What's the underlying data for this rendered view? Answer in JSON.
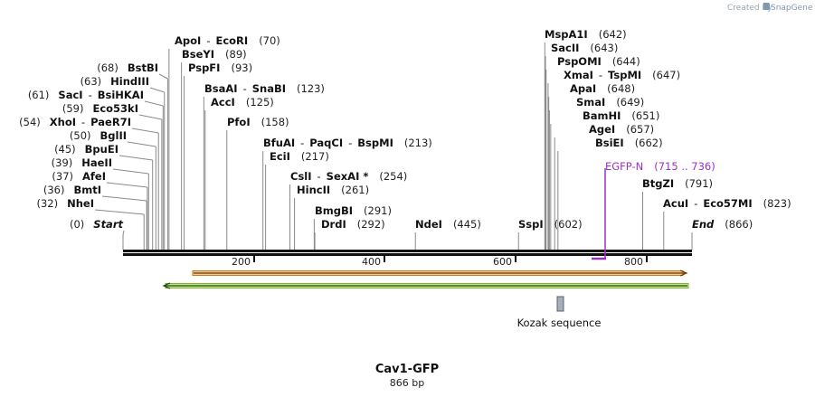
{
  "credit": {
    "created_by": "Created by",
    "brand": "SnapGene"
  },
  "sequence": {
    "length_bp": 866
  },
  "title": "Cav1-GFP",
  "subtitle": "866 bp",
  "features": [
    {
      "id": "EGFP-N",
      "label": "EGFP-N",
      "range_text": "(715 .. 736)",
      "start": 715,
      "end": 736
    },
    {
      "id": "kozak",
      "label": "Kozak sequence"
    }
  ],
  "ruler_ticks": [
    "200",
    "400",
    "600",
    "800"
  ],
  "sites": [
    {
      "name": "Start",
      "pos_text": "(0)",
      "pos": 0,
      "side": "left",
      "italic": true
    },
    {
      "name": "NheI",
      "pos_text": "(32)",
      "pos": 32,
      "side": "left"
    },
    {
      "name": "BmtI",
      "pos_text": "(36)",
      "pos": 36,
      "side": "left"
    },
    {
      "name": "AfeI",
      "pos_text": "(37)",
      "pos": 37,
      "side": "left"
    },
    {
      "name": "HaeII",
      "pos_text": "(39)",
      "pos": 39,
      "side": "left"
    },
    {
      "name": "BpuEI",
      "pos_text": "(45)",
      "pos": 45,
      "side": "left"
    },
    {
      "name": "BglII",
      "pos_text": "(50)",
      "pos": 50,
      "side": "left"
    },
    {
      "name": "XhoI",
      "name2": "PaeR7I",
      "pos_text": "(54)",
      "pos": 54,
      "side": "left"
    },
    {
      "name": "Eco53kI",
      "pos_text": "(59)",
      "pos": 59,
      "side": "left"
    },
    {
      "name": "SacI",
      "name2": "BsiHKAI",
      "pos_text": "(61)",
      "pos": 61,
      "side": "left"
    },
    {
      "name": "HindIII",
      "pos_text": "(63)",
      "pos": 63,
      "side": "left"
    },
    {
      "name": "BstBI",
      "pos_text": "(68)",
      "pos": 68,
      "side": "left"
    },
    {
      "name": "ApoI",
      "name2": "EcoRI",
      "pos_text": "(70)",
      "pos": 70,
      "side": "right"
    },
    {
      "name": "BseYI",
      "pos_text": "(89)",
      "pos": 89,
      "side": "right"
    },
    {
      "name": "PspFI",
      "pos_text": "(93)",
      "pos": 93,
      "side": "right"
    },
    {
      "name": "BsaAI",
      "name2": "SnaBI",
      "pos_text": "(123)",
      "pos": 123,
      "side": "right"
    },
    {
      "name": "AccI",
      "pos_text": "(125)",
      "pos": 125,
      "side": "right"
    },
    {
      "name": "PfoI",
      "pos_text": "(158)",
      "pos": 158,
      "side": "right"
    },
    {
      "name": "BfuAI",
      "name2": "PaqCI",
      "name3": "BspMI",
      "pos_text": "(213)",
      "pos": 213,
      "side": "right"
    },
    {
      "name": "EciI",
      "pos_text": "(217)",
      "pos": 217,
      "side": "right"
    },
    {
      "name": "CslI",
      "name2": "SexAI *",
      "pos_text": "(254)",
      "pos": 254,
      "side": "right"
    },
    {
      "name": "HincII",
      "pos_text": "(261)",
      "pos": 261,
      "side": "right"
    },
    {
      "name": "BmgBI",
      "pos_text": "(291)",
      "pos": 291,
      "side": "right"
    },
    {
      "name": "DrdI",
      "pos_text": "(292)",
      "pos": 292,
      "side": "right"
    },
    {
      "name": "NdeI",
      "pos_text": "(445)",
      "pos": 445,
      "side": "right"
    },
    {
      "name": "SspI",
      "pos_text": "(602)",
      "pos": 602,
      "side": "right"
    },
    {
      "name": "MspA1I",
      "pos_text": "(642)",
      "pos": 642,
      "side": "right"
    },
    {
      "name": "SacII",
      "pos_text": "(643)",
      "pos": 643,
      "side": "right"
    },
    {
      "name": "PspOMI",
      "pos_text": "(644)",
      "pos": 644,
      "side": "right"
    },
    {
      "name": "XmaI",
      "name2": "TspMI",
      "pos_text": "(647)",
      "pos": 647,
      "side": "right"
    },
    {
      "name": "ApaI",
      "pos_text": "(648)",
      "pos": 648,
      "side": "right"
    },
    {
      "name": "SmaI",
      "pos_text": "(649)",
      "pos": 649,
      "side": "right"
    },
    {
      "name": "BamHI",
      "pos_text": "(651)",
      "pos": 651,
      "side": "right"
    },
    {
      "name": "AgeI",
      "pos_text": "(657)",
      "pos": 657,
      "side": "right"
    },
    {
      "name": "BsiEI",
      "pos_text": "(662)",
      "pos": 662,
      "side": "right"
    },
    {
      "name": "BtgZI",
      "pos_text": "(791)",
      "pos": 791,
      "side": "right"
    },
    {
      "name": "AcuI",
      "name2": "Eco57MI",
      "pos_text": "(823)",
      "pos": 823,
      "side": "right"
    },
    {
      "name": "End",
      "pos_text": "(866)",
      "pos": 866,
      "side": "right",
      "italic": true
    }
  ]
}
